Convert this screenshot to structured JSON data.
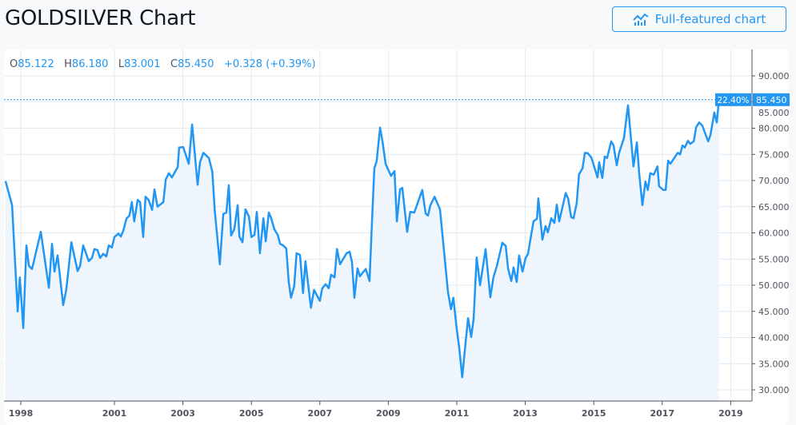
{
  "header": {
    "title": "GOLDSILVER Chart",
    "button_label": "Full-featured chart",
    "button_icon": "chart-line-icon"
  },
  "legend": {
    "o_label": "O",
    "o": "85.122",
    "h_label": "H",
    "h": "86.180",
    "l_label": "L",
    "l": "83.001",
    "c_label": "C",
    "c": "85.450",
    "change": "+0.328 (+0.39%)"
  },
  "colors": {
    "line": "#2196f3",
    "fill": "#eef5fd",
    "grid": "#e1ecf2",
    "axis": "#50535e"
  },
  "chart_data": {
    "type": "area",
    "title": "",
    "xlabel": "",
    "ylabel": "",
    "ylim": [
      27,
      95
    ],
    "xlim": [
      1997.5,
      2019.6
    ],
    "grid": true,
    "legend": "none",
    "y_ticks": [
      "90.000",
      "85.000",
      "80.000",
      "75.000",
      "70.000",
      "65.000",
      "60.000",
      "55.000",
      "50.000",
      "45.000",
      "40.000",
      "35.000",
      "30.000"
    ],
    "x_ticks": [
      "1998",
      "2001",
      "2003",
      "2005",
      "2007",
      "2009",
      "2011",
      "2013",
      "2015",
      "2017",
      "2019"
    ],
    "last_value_label": "85.450",
    "last_percent_label": "22.40%",
    "points": [
      [
        1997.51,
        69.9
      ],
      [
        1997.72,
        65.3
      ],
      [
        1997.9,
        45.0
      ],
      [
        1997.97,
        51.5
      ],
      [
        1998.08,
        41.8
      ],
      [
        1998.18,
        57.6
      ],
      [
        1998.26,
        53.7
      ],
      [
        1998.36,
        53.1
      ],
      [
        1998.64,
        60.2
      ],
      [
        1998.9,
        49.5
      ],
      [
        1999.0,
        57.9
      ],
      [
        1999.08,
        52.6
      ],
      [
        1999.18,
        55.7
      ],
      [
        1999.36,
        46.2
      ],
      [
        1999.46,
        49.2
      ],
      [
        1999.62,
        58.2
      ],
      [
        1999.82,
        52.7
      ],
      [
        1999.9,
        53.7
      ],
      [
        2000.0,
        57.6
      ],
      [
        2000.18,
        54.6
      ],
      [
        2000.28,
        55.2
      ],
      [
        2000.36,
        56.9
      ],
      [
        2000.46,
        56.7
      ],
      [
        2000.54,
        55.2
      ],
      [
        2000.64,
        56.0
      ],
      [
        2000.74,
        55.5
      ],
      [
        2000.82,
        57.6
      ],
      [
        2000.92,
        57.2
      ],
      [
        2001.0,
        59.2
      ],
      [
        2001.12,
        59.9
      ],
      [
        2001.19,
        59.3
      ],
      [
        2001.26,
        60.4
      ],
      [
        2001.35,
        62.7
      ],
      [
        2001.44,
        63.3
      ],
      [
        2001.51,
        65.9
      ],
      [
        2001.58,
        62.2
      ],
      [
        2001.68,
        66.3
      ],
      [
        2001.75,
        65.9
      ],
      [
        2001.84,
        59.2
      ],
      [
        2001.91,
        66.9
      ],
      [
        2002.0,
        66.3
      ],
      [
        2002.1,
        64.4
      ],
      [
        2002.17,
        68.3
      ],
      [
        2002.26,
        65.0
      ],
      [
        2002.43,
        65.9
      ],
      [
        2002.5,
        70.2
      ],
      [
        2002.59,
        71.4
      ],
      [
        2002.68,
        70.6
      ],
      [
        2002.85,
        72.6
      ],
      [
        2002.89,
        76.3
      ],
      [
        2003.01,
        76.4
      ],
      [
        2003.17,
        73.2
      ],
      [
        2003.27,
        80.7
      ],
      [
        2003.43,
        69.2
      ],
      [
        2003.5,
        73.5
      ],
      [
        2003.6,
        75.3
      ],
      [
        2003.76,
        74.3
      ],
      [
        2003.86,
        71.7
      ],
      [
        2003.93,
        64.4
      ],
      [
        2004.08,
        54.0
      ],
      [
        2004.18,
        63.6
      ],
      [
        2004.27,
        63.9
      ],
      [
        2004.34,
        69.1
      ],
      [
        2004.41,
        59.5
      ],
      [
        2004.5,
        60.7
      ],
      [
        2004.6,
        65.3
      ],
      [
        2004.65,
        59.3
      ],
      [
        2004.74,
        58.2
      ],
      [
        2004.83,
        64.5
      ],
      [
        2004.93,
        63.1
      ],
      [
        2005.0,
        59.2
      ],
      [
        2005.09,
        59.6
      ],
      [
        2005.16,
        64.0
      ],
      [
        2005.25,
        56.1
      ],
      [
        2005.35,
        62.8
      ],
      [
        2005.42,
        58.4
      ],
      [
        2005.51,
        63.9
      ],
      [
        2005.58,
        62.8
      ],
      [
        2005.67,
        60.7
      ],
      [
        2005.77,
        59.6
      ],
      [
        2005.84,
        57.9
      ],
      [
        2005.93,
        57.6
      ],
      [
        2006.02,
        57.0
      ],
      [
        2006.09,
        50.6
      ],
      [
        2006.16,
        47.6
      ],
      [
        2006.25,
        49.8
      ],
      [
        2006.32,
        56.1
      ],
      [
        2006.42,
        55.8
      ],
      [
        2006.51,
        48.5
      ],
      [
        2006.58,
        54.6
      ],
      [
        2006.67,
        49.5
      ],
      [
        2006.74,
        45.7
      ],
      [
        2006.83,
        49.1
      ],
      [
        2007.0,
        47.0
      ],
      [
        2007.07,
        49.4
      ],
      [
        2007.17,
        50.2
      ],
      [
        2007.26,
        49.4
      ],
      [
        2007.33,
        52.0
      ],
      [
        2007.43,
        51.5
      ],
      [
        2007.5,
        56.9
      ],
      [
        2007.59,
        54.0
      ],
      [
        2007.78,
        56.1
      ],
      [
        2007.87,
        56.4
      ],
      [
        2007.94,
        54.4
      ],
      [
        2008.01,
        47.6
      ],
      [
        2008.1,
        53.2
      ],
      [
        2008.17,
        51.7
      ],
      [
        2008.24,
        52.3
      ],
      [
        2008.34,
        53.1
      ],
      [
        2008.45,
        50.8
      ],
      [
        2008.52,
        61.8
      ],
      [
        2008.59,
        72.3
      ],
      [
        2008.66,
        73.7
      ],
      [
        2008.76,
        80.1
      ],
      [
        2008.83,
        77.5
      ],
      [
        2008.92,
        73.2
      ],
      [
        2009.08,
        70.9
      ],
      [
        2009.18,
        71.8
      ],
      [
        2009.25,
        62.2
      ],
      [
        2009.34,
        68.3
      ],
      [
        2009.41,
        68.6
      ],
      [
        2009.55,
        60.2
      ],
      [
        2009.64,
        64.0
      ],
      [
        2009.76,
        63.9
      ],
      [
        2009.99,
        68.2
      ],
      [
        2010.09,
        63.7
      ],
      [
        2010.16,
        63.3
      ],
      [
        2010.23,
        65.3
      ],
      [
        2010.35,
        66.9
      ],
      [
        2010.51,
        64.5
      ],
      [
        2010.74,
        48.8
      ],
      [
        2010.83,
        45.4
      ],
      [
        2010.9,
        47.6
      ],
      [
        2011.0,
        41.5
      ],
      [
        2011.07,
        38.1
      ],
      [
        2011.16,
        32.4
      ],
      [
        2011.26,
        39.3
      ],
      [
        2011.33,
        43.7
      ],
      [
        2011.42,
        40.1
      ],
      [
        2011.49,
        43.5
      ],
      [
        2011.58,
        55.3
      ],
      [
        2011.68,
        50.0
      ],
      [
        2011.84,
        56.9
      ],
      [
        2011.98,
        47.7
      ],
      [
        2012.07,
        51.5
      ],
      [
        2012.17,
        53.7
      ],
      [
        2012.33,
        58.1
      ],
      [
        2012.43,
        57.5
      ],
      [
        2012.5,
        53.1
      ],
      [
        2012.59,
        50.8
      ],
      [
        2012.66,
        53.4
      ],
      [
        2012.75,
        50.6
      ],
      [
        2012.82,
        55.7
      ],
      [
        2012.92,
        52.6
      ],
      [
        2013.01,
        55.2
      ],
      [
        2013.08,
        56.0
      ],
      [
        2013.2,
        60.7
      ],
      [
        2013.24,
        62.2
      ],
      [
        2013.34,
        62.7
      ],
      [
        2013.38,
        66.6
      ],
      [
        2013.5,
        58.7
      ],
      [
        2013.59,
        61.3
      ],
      [
        2013.66,
        60.1
      ],
      [
        2013.76,
        62.8
      ],
      [
        2013.85,
        61.9
      ],
      [
        2013.92,
        65.4
      ],
      [
        2013.99,
        62.2
      ],
      [
        2014.18,
        67.6
      ],
      [
        2014.25,
        66.6
      ],
      [
        2014.34,
        63.0
      ],
      [
        2014.41,
        62.8
      ],
      [
        2014.5,
        65.6
      ],
      [
        2014.57,
        71.2
      ],
      [
        2014.67,
        72.3
      ],
      [
        2014.74,
        75.3
      ],
      [
        2014.83,
        75.2
      ],
      [
        2014.93,
        74.4
      ],
      [
        2015.11,
        70.6
      ],
      [
        2015.16,
        73.5
      ],
      [
        2015.25,
        70.5
      ],
      [
        2015.32,
        74.6
      ],
      [
        2015.39,
        74.3
      ],
      [
        2015.51,
        77.5
      ],
      [
        2015.58,
        76.7
      ],
      [
        2015.67,
        72.9
      ],
      [
        2015.74,
        75.3
      ],
      [
        2015.88,
        78.1
      ],
      [
        2016.0,
        84.4
      ],
      [
        2016.16,
        72.7
      ],
      [
        2016.26,
        77.3
      ],
      [
        2016.33,
        71.2
      ],
      [
        2016.42,
        65.3
      ],
      [
        2016.51,
        69.8
      ],
      [
        2016.58,
        68.2
      ],
      [
        2016.65,
        71.4
      ],
      [
        2016.75,
        71.1
      ],
      [
        2016.86,
        72.7
      ],
      [
        2016.91,
        68.9
      ],
      [
        2017.03,
        68.2
      ],
      [
        2017.1,
        68.2
      ],
      [
        2017.17,
        73.8
      ],
      [
        2017.24,
        73.2
      ],
      [
        2017.45,
        75.3
      ],
      [
        2017.52,
        75.0
      ],
      [
        2017.59,
        76.7
      ],
      [
        2017.66,
        76.3
      ],
      [
        2017.75,
        77.6
      ],
      [
        2017.82,
        77.0
      ],
      [
        2017.92,
        77.5
      ],
      [
        2017.99,
        80.2
      ],
      [
        2018.08,
        81.1
      ],
      [
        2018.17,
        80.5
      ],
      [
        2018.34,
        77.5
      ],
      [
        2018.41,
        78.7
      ],
      [
        2018.52,
        83.0
      ],
      [
        2018.59,
        81.1
      ],
      [
        2018.66,
        85.45
      ]
    ]
  }
}
